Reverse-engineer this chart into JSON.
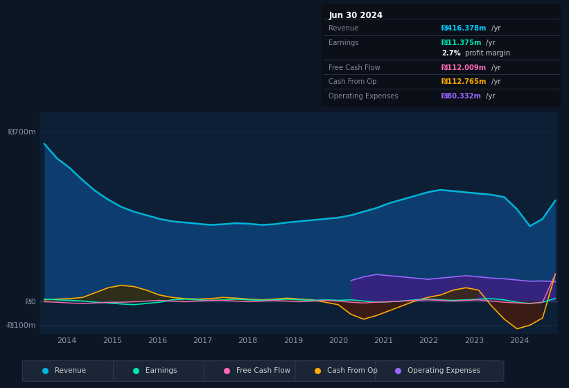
{
  "bg_color": "#0c1624",
  "plot_bg_color": "#0d1f35",
  "grid_color": "#1a2e47",
  "title_date": "Jun 30 2024",
  "info_box_rows": [
    {
      "label": "Revenue",
      "value": "₪416.378m",
      "suffix": " /yr",
      "value_color": "#00ccff",
      "bold": true
    },
    {
      "label": "Earnings",
      "value": "₪11.375m",
      "suffix": " /yr",
      "value_color": "#00e5b0",
      "bold": true
    },
    {
      "label": "",
      "value": "2.7%",
      "suffix": " profit margin",
      "value_color": "#ffffff",
      "bold": true
    },
    {
      "label": "Free Cash Flow",
      "value": "₪112.009m",
      "suffix": " /yr",
      "value_color": "#ff69b4",
      "bold": true
    },
    {
      "label": "Cash From Op",
      "value": "₪112.765m",
      "suffix": " /yr",
      "value_color": "#ffaa00",
      "bold": true
    },
    {
      "label": "Operating Expenses",
      "value": "₪80.332m",
      "suffix": " /yr",
      "value_color": "#9966ff",
      "bold": true
    }
  ],
  "ylim": [
    -135,
    780
  ],
  "ytick_positions": [
    -100,
    0,
    700
  ],
  "ytick_labels": [
    "-₪100m",
    "₪0",
    "₪700m"
  ],
  "xlim_start": 2013.4,
  "xlim_end": 2024.85,
  "xticks": [
    2014,
    2015,
    2016,
    2017,
    2018,
    2019,
    2020,
    2021,
    2022,
    2023,
    2024
  ],
  "revenue_color": "#00b4d8",
  "revenue_fill_color": "#0d3d6e",
  "earnings_color": "#00e5b0",
  "fcf_color": "#ff69b4",
  "cashop_color": "#ffaa00",
  "cashop_fill_color": "#3a2a00",
  "opex_color": "#9966ff",
  "opex_fill_color": "#3d2080",
  "legend": [
    {
      "label": "Revenue",
      "color": "#00b4d8"
    },
    {
      "label": "Earnings",
      "color": "#00e5b0"
    },
    {
      "label": "Free Cash Flow",
      "color": "#ff69b4"
    },
    {
      "label": "Cash From Op",
      "color": "#ffaa00"
    },
    {
      "label": "Operating Expenses",
      "color": "#9966ff"
    }
  ],
  "revenue": [
    650,
    590,
    550,
    500,
    455,
    420,
    390,
    370,
    355,
    340,
    330,
    325,
    320,
    315,
    318,
    322,
    320,
    315,
    318,
    325,
    330,
    335,
    340,
    345,
    355,
    370,
    385,
    405,
    420,
    435,
    450,
    460,
    455,
    450,
    445,
    440,
    430,
    380,
    310,
    340,
    416
  ],
  "earnings": [
    8,
    5,
    3,
    0,
    -5,
    -8,
    -12,
    -15,
    -10,
    -5,
    5,
    8,
    5,
    3,
    5,
    8,
    5,
    3,
    5,
    8,
    5,
    3,
    5,
    3,
    5,
    0,
    -5,
    -3,
    0,
    5,
    8,
    5,
    3,
    5,
    8,
    10,
    5,
    -5,
    -10,
    -5,
    11
  ],
  "free_cash_flow": [
    -3,
    -5,
    -8,
    -10,
    -8,
    -5,
    -5,
    -3,
    0,
    3,
    0,
    -3,
    0,
    3,
    3,
    0,
    -3,
    0,
    3,
    0,
    -3,
    0,
    3,
    0,
    -5,
    -8,
    -5,
    -3,
    0,
    3,
    5,
    3,
    0,
    3,
    5,
    0,
    -5,
    -8,
    -10,
    -5,
    112
  ],
  "cash_from_op": [
    5,
    8,
    10,
    15,
    35,
    55,
    65,
    60,
    45,
    25,
    15,
    10,
    8,
    10,
    15,
    12,
    8,
    5,
    8,
    12,
    8,
    5,
    -5,
    -15,
    -55,
    -75,
    -60,
    -40,
    -20,
    0,
    15,
    25,
    45,
    55,
    45,
    -20,
    -75,
    -115,
    -100,
    -70,
    112
  ],
  "operating_expenses": [
    0,
    0,
    0,
    0,
    0,
    0,
    0,
    0,
    0,
    0,
    0,
    0,
    0,
    0,
    0,
    0,
    0,
    0,
    0,
    0,
    0,
    0,
    0,
    0,
    85,
    100,
    110,
    105,
    100,
    95,
    90,
    95,
    100,
    105,
    100,
    95,
    92,
    87,
    82,
    83,
    80
  ]
}
